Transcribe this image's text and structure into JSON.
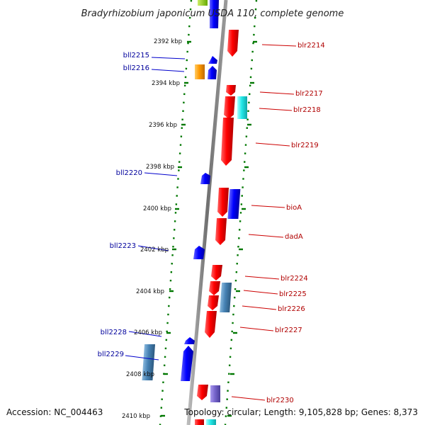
{
  "title": "Bradyrhizobium japonicum USDA 110, complete genome",
  "footer": {
    "accession": "Accession: NC_004463",
    "topology": "Topology: circular; Length: 9,105,828 bp; Genes: 8,373"
  },
  "ticks": [
    "2392 kbp",
    "2394 kbp",
    "2396 kbp",
    "2398 kbp",
    "2400 kbp",
    "2402 kbp",
    "2404 kbp",
    "2406 kbp",
    "2408 kbp",
    "2410 kbp"
  ],
  "genes_left": [
    "bll2215",
    "bll2216",
    "bll2220",
    "bll2223",
    "bll2228",
    "bll2229"
  ],
  "genes_right": [
    "blr2214",
    "blr2217",
    "blr2218",
    "blr2219",
    "bioA",
    "dadA",
    "blr2224",
    "blr2225",
    "blr2226",
    "blr2227",
    "blr2230"
  ],
  "colors": {
    "forward": "#ee0000",
    "reverse": "#0000ee",
    "orange": "#ff9900",
    "cyan": "#22e0e0",
    "steel": "#4682b4",
    "purple": "#7766cc",
    "backbone": "#808080",
    "dots": "#007700",
    "label_blue": "#00009c",
    "label_red": "#b00000"
  }
}
